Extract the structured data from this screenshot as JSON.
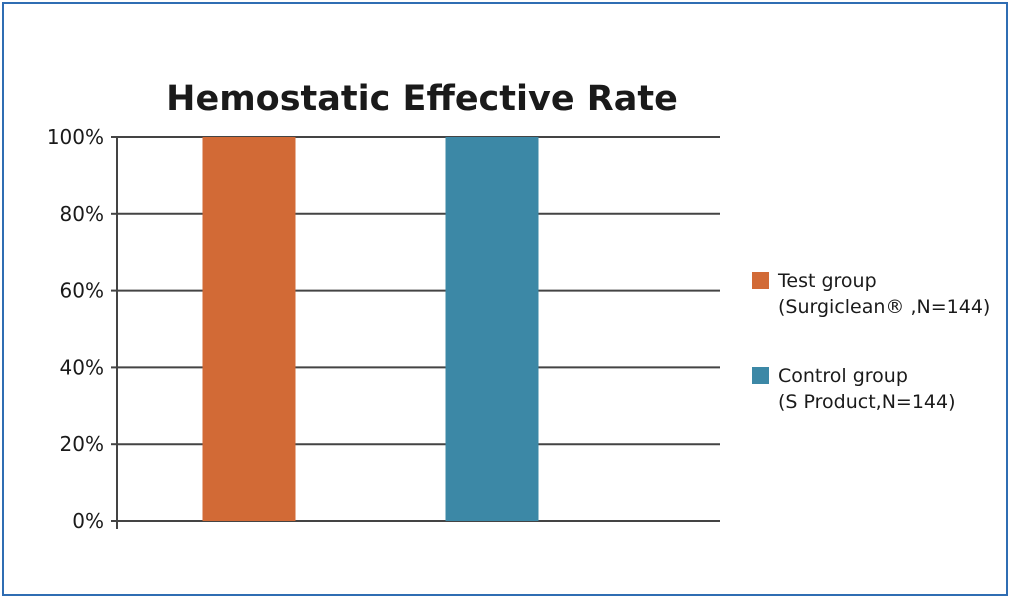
{
  "chart_data": {
    "type": "bar",
    "title": "Hemostatic Effective Rate",
    "categories": [
      "Test group (Surgiclean® ,N=144)",
      "Control group (S Product,N=144)"
    ],
    "series": [
      {
        "name": "Test group (Surgiclean® ,N=144)",
        "color": "#d26a36",
        "values": [
          100,
          null
        ]
      },
      {
        "name": "Control group (S Product,N=144)",
        "color": "#3c88a6",
        "values": [
          null,
          100
        ]
      }
    ],
    "ylim": [
      0,
      100
    ],
    "y_ticks": [
      "0%",
      "20%",
      "40%",
      "60%",
      "80%",
      "100%"
    ],
    "grid": true,
    "legend_position": "right",
    "legend": [
      {
        "line1": "Test group",
        "line2": "(Surgiclean® ,N=144)",
        "color": "#d26a36"
      },
      {
        "line1": "Control group",
        "line2": "(S Product,N=144)",
        "color": "#3c88a6"
      }
    ],
    "colors": {
      "frame": "#2f6db3",
      "grid": "#444444"
    }
  }
}
